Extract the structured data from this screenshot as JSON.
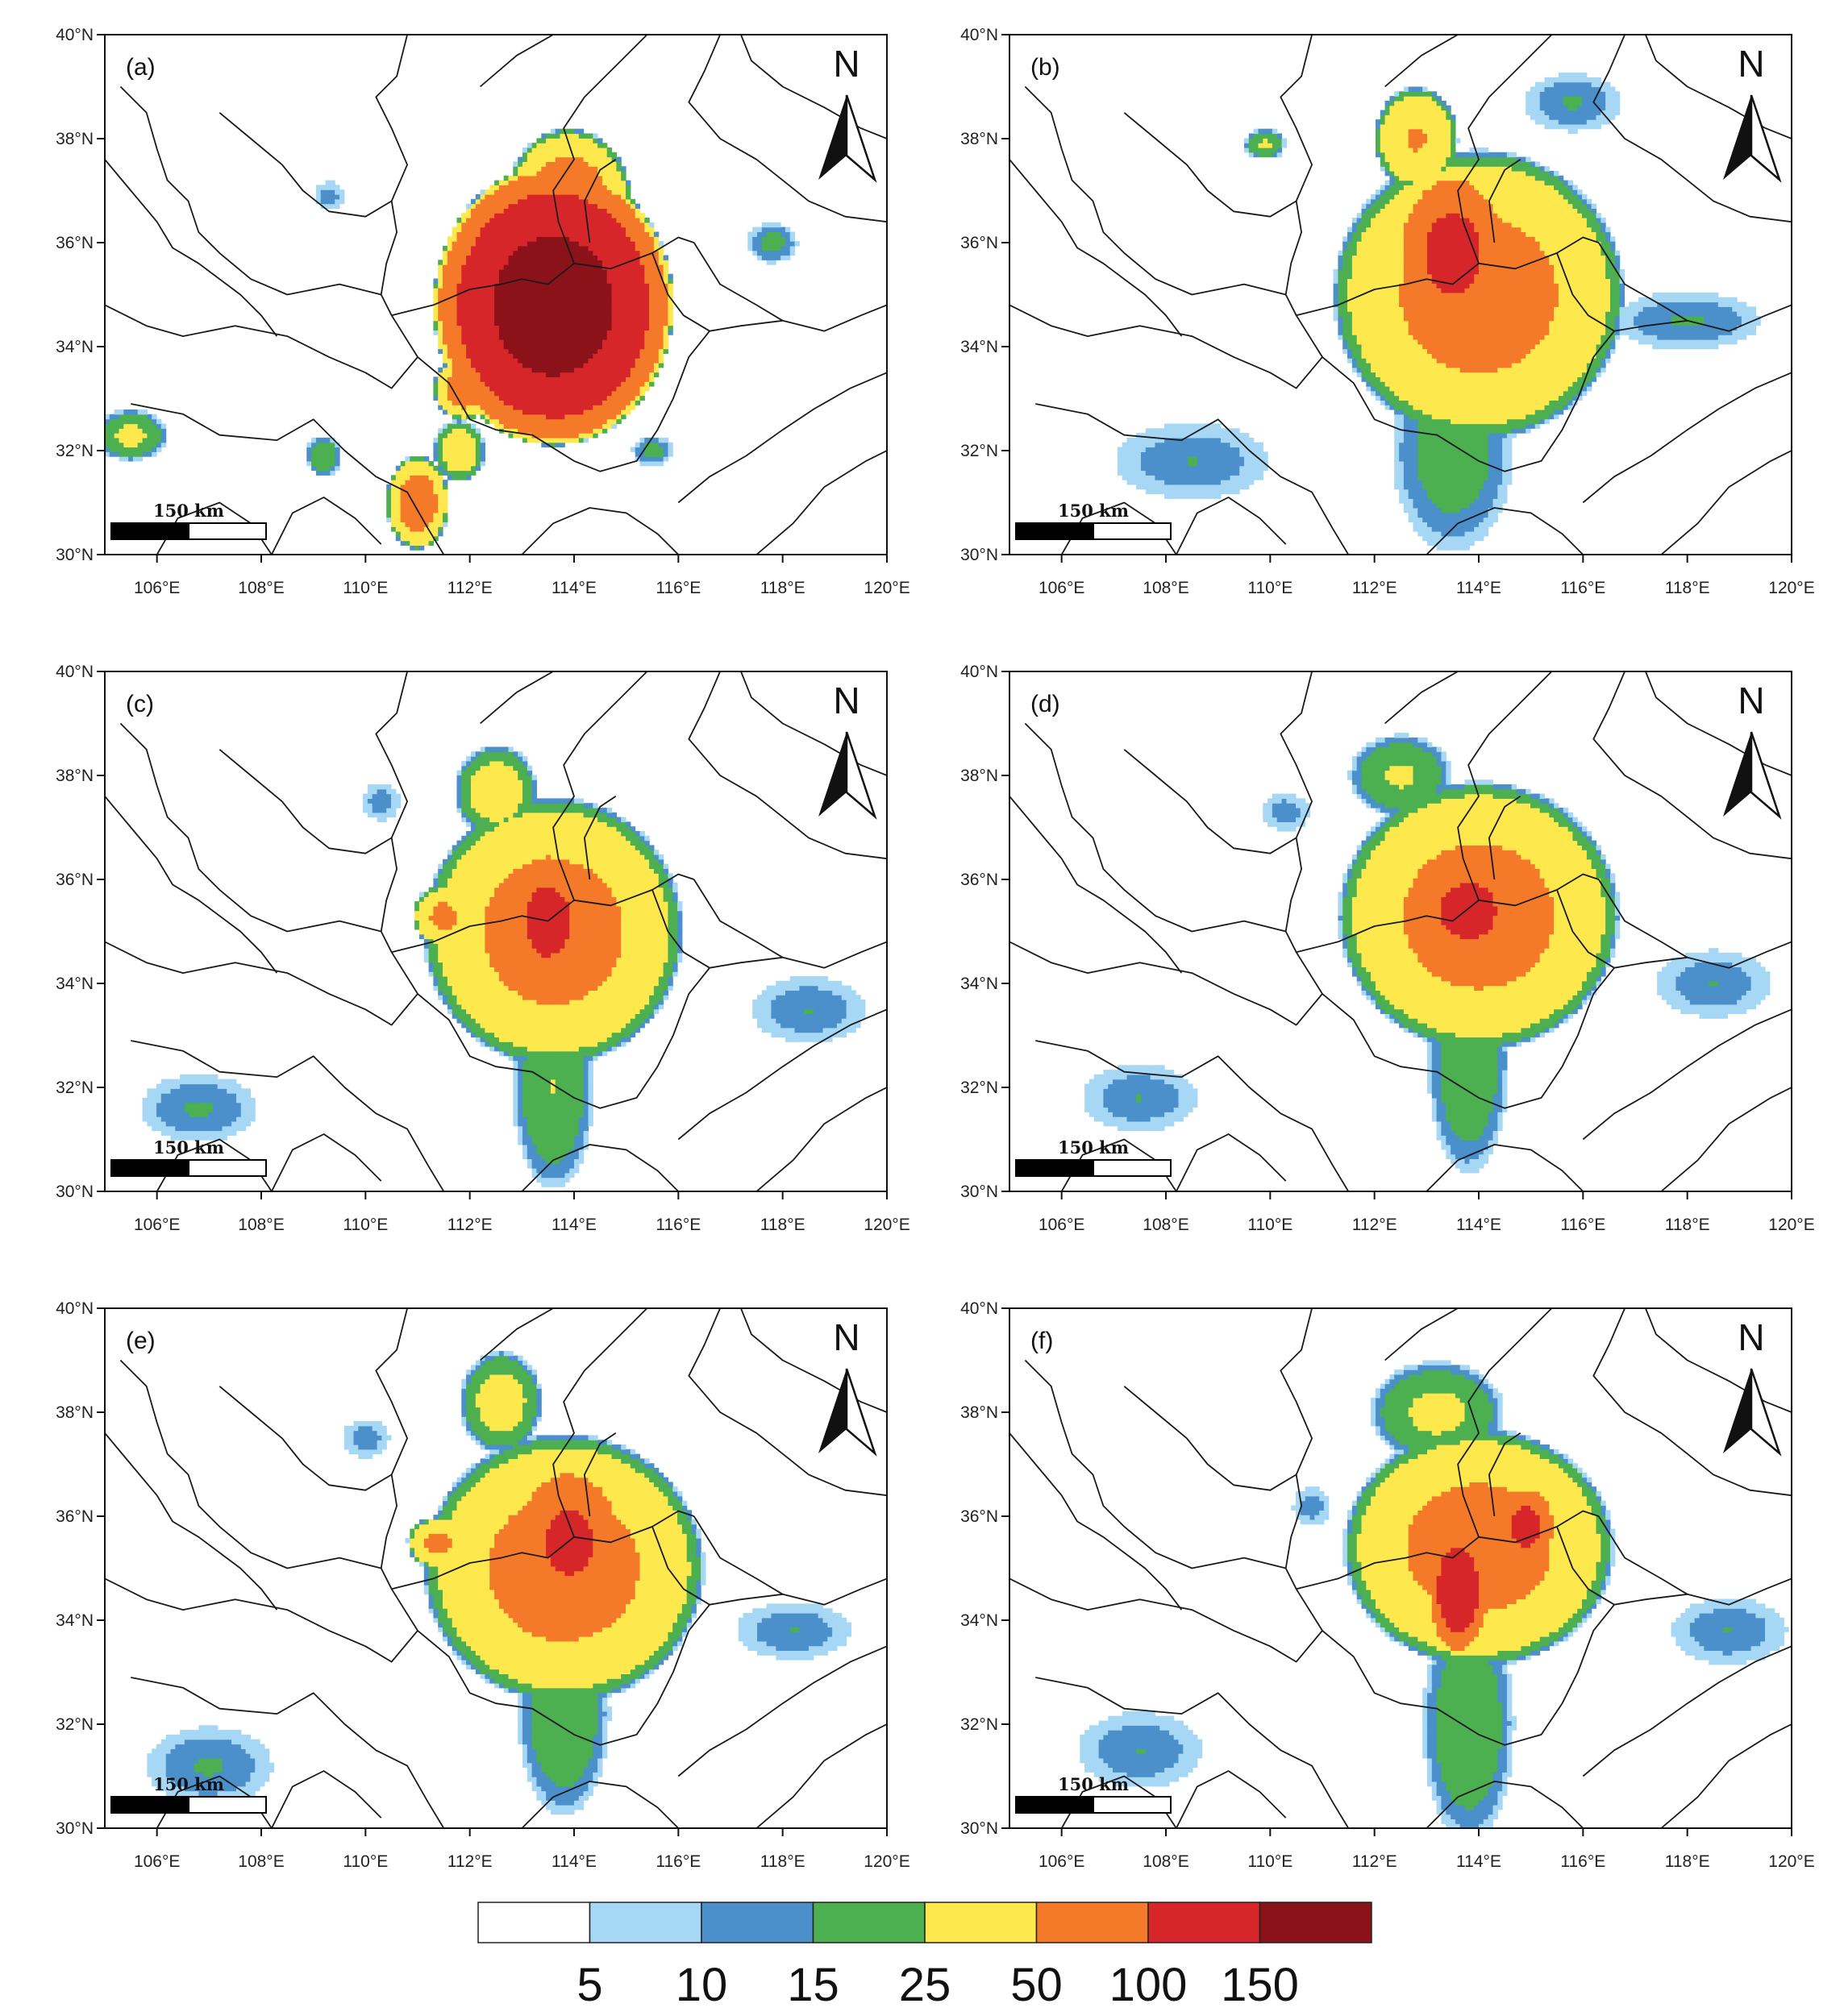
{
  "figure": {
    "panels": [
      {
        "label": "(a)"
      },
      {
        "label": "(b)"
      },
      {
        "label": "(c)"
      },
      {
        "label": "(d)"
      },
      {
        "label": "(e)"
      },
      {
        "label": "(f)"
      }
    ],
    "lat_ticks": [
      "30°N",
      "32°N",
      "34°N",
      "36°N",
      "38°N",
      "40°N"
    ],
    "lon_ticks": [
      "106°E",
      "108°E",
      "110°E",
      "112°E",
      "114°E",
      "116°E",
      "118°E",
      "120°E"
    ],
    "north_label": "N",
    "scale_label": "150 km"
  },
  "chart_data": {
    "type": "heatmap",
    "xlim": [
      105,
      120
    ],
    "ylim": [
      30,
      40
    ],
    "colorbar": {
      "levels": [
        5,
        10,
        15,
        25,
        50,
        100,
        150
      ],
      "tick_labels": [
        "5",
        "10",
        "15",
        "25",
        "50",
        "100",
        "150"
      ],
      "colors": [
        "#ffffff",
        "#a6d8f5",
        "#4b8fcb",
        "#4caf50",
        "#fde84d",
        "#f47a2a",
        "#d7262a",
        "#8b1219"
      ]
    },
    "panels": [
      {
        "label": "(a)",
        "rain_blobs": [
          {
            "lon": 113.6,
            "lat": 34.8,
            "rx": 2.3,
            "ry": 2.7,
            "peak": 170
          },
          {
            "lon": 113.9,
            "lat": 36.8,
            "rx": 1.2,
            "ry": 1.4,
            "peak": 60
          },
          {
            "lon": 111.9,
            "lat": 33.2,
            "rx": 0.6,
            "ry": 0.6,
            "peak": 60
          },
          {
            "lon": 111.0,
            "lat": 31.0,
            "rx": 0.6,
            "ry": 0.9,
            "peak": 60
          },
          {
            "lon": 111.8,
            "lat": 32.0,
            "rx": 0.5,
            "ry": 0.6,
            "peak": 30
          },
          {
            "lon": 105.5,
            "lat": 32.3,
            "rx": 0.7,
            "ry": 0.5,
            "peak": 22
          },
          {
            "lon": 109.2,
            "lat": 31.9,
            "rx": 0.35,
            "ry": 0.4,
            "peak": 18
          },
          {
            "lon": 117.8,
            "lat": 36.0,
            "rx": 0.5,
            "ry": 0.4,
            "peak": 12
          },
          {
            "lon": 109.3,
            "lat": 36.9,
            "rx": 0.3,
            "ry": 0.3,
            "peak": 7
          },
          {
            "lon": 115.5,
            "lat": 32.0,
            "rx": 0.4,
            "ry": 0.3,
            "peak": 12
          }
        ]
      },
      {
        "label": "(b)",
        "rain_blobs": [
          {
            "lon": 114.0,
            "lat": 35.0,
            "rx": 2.8,
            "ry": 2.8,
            "peak": 55
          },
          {
            "lon": 113.5,
            "lat": 35.8,
            "rx": 1.1,
            "ry": 1.6,
            "peak": 110
          },
          {
            "lon": 112.8,
            "lat": 38.0,
            "rx": 0.8,
            "ry": 1.0,
            "peak": 45
          },
          {
            "lon": 113.5,
            "lat": 32.0,
            "rx": 1.2,
            "ry": 2.0,
            "peak": 14
          },
          {
            "lon": 108.5,
            "lat": 31.8,
            "rx": 1.6,
            "ry": 0.8,
            "peak": 8
          },
          {
            "lon": 118.0,
            "lat": 34.5,
            "rx": 1.5,
            "ry": 0.6,
            "peak": 9
          },
          {
            "lon": 109.9,
            "lat": 37.9,
            "rx": 0.4,
            "ry": 0.3,
            "peak": 20
          },
          {
            "lon": 115.8,
            "lat": 38.7,
            "rx": 1.0,
            "ry": 0.6,
            "peak": 9
          }
        ]
      },
      {
        "label": "(c)",
        "rain_blobs": [
          {
            "lon": 113.6,
            "lat": 35.0,
            "rx": 2.5,
            "ry": 2.6,
            "peak": 55
          },
          {
            "lon": 113.5,
            "lat": 35.2,
            "rx": 0.9,
            "ry": 1.4,
            "peak": 110
          },
          {
            "lon": 113.6,
            "lat": 32.0,
            "rx": 0.8,
            "ry": 2.0,
            "peak": 18
          },
          {
            "lon": 112.5,
            "lat": 37.7,
            "rx": 0.8,
            "ry": 0.9,
            "peak": 28
          },
          {
            "lon": 111.5,
            "lat": 35.3,
            "rx": 0.6,
            "ry": 0.6,
            "peak": 50
          },
          {
            "lon": 106.8,
            "lat": 31.6,
            "rx": 1.2,
            "ry": 0.7,
            "peak": 9
          },
          {
            "lon": 118.5,
            "lat": 33.5,
            "rx": 1.2,
            "ry": 0.7,
            "peak": 8
          },
          {
            "lon": 110.3,
            "lat": 37.5,
            "rx": 0.4,
            "ry": 0.4,
            "peak": 7
          }
        ]
      },
      {
        "label": "(d)",
        "rain_blobs": [
          {
            "lon": 114.0,
            "lat": 35.3,
            "rx": 2.7,
            "ry": 2.6,
            "peak": 55
          },
          {
            "lon": 113.8,
            "lat": 35.4,
            "rx": 1.3,
            "ry": 1.3,
            "peak": 105
          },
          {
            "lon": 113.8,
            "lat": 32.5,
            "rx": 0.8,
            "ry": 2.2,
            "peak": 17
          },
          {
            "lon": 112.5,
            "lat": 38.0,
            "rx": 1.0,
            "ry": 0.8,
            "peak": 20
          },
          {
            "lon": 107.5,
            "lat": 31.8,
            "rx": 1.2,
            "ry": 0.7,
            "peak": 8
          },
          {
            "lon": 118.5,
            "lat": 34.0,
            "rx": 1.2,
            "ry": 0.7,
            "peak": 8
          },
          {
            "lon": 110.3,
            "lat": 37.3,
            "rx": 0.5,
            "ry": 0.4,
            "peak": 7
          }
        ]
      },
      {
        "label": "(e)",
        "rain_blobs": [
          {
            "lon": 113.8,
            "lat": 35.0,
            "rx": 2.7,
            "ry": 2.6,
            "peak": 55
          },
          {
            "lon": 113.9,
            "lat": 35.5,
            "rx": 1.1,
            "ry": 1.5,
            "peak": 105
          },
          {
            "lon": 113.8,
            "lat": 32.2,
            "rx": 0.9,
            "ry": 2.0,
            "peak": 17
          },
          {
            "lon": 112.6,
            "lat": 38.2,
            "rx": 0.8,
            "ry": 1.0,
            "peak": 26
          },
          {
            "lon": 111.4,
            "lat": 35.5,
            "rx": 0.6,
            "ry": 0.5,
            "peak": 50
          },
          {
            "lon": 107.0,
            "lat": 31.2,
            "rx": 1.3,
            "ry": 0.8,
            "peak": 9
          },
          {
            "lon": 118.2,
            "lat": 33.8,
            "rx": 1.2,
            "ry": 0.6,
            "peak": 8
          },
          {
            "lon": 110.0,
            "lat": 37.5,
            "rx": 0.5,
            "ry": 0.4,
            "peak": 7
          }
        ]
      },
      {
        "label": "(f)",
        "rain_blobs": [
          {
            "lon": 114.0,
            "lat": 35.4,
            "rx": 2.6,
            "ry": 2.3,
            "peak": 55
          },
          {
            "lon": 113.6,
            "lat": 34.6,
            "rx": 0.6,
            "ry": 1.3,
            "peak": 130
          },
          {
            "lon": 114.9,
            "lat": 35.8,
            "rx": 0.6,
            "ry": 0.8,
            "peak": 110
          },
          {
            "lon": 113.8,
            "lat": 32.0,
            "rx": 0.9,
            "ry": 2.3,
            "peak": 17
          },
          {
            "lon": 113.2,
            "lat": 38.0,
            "rx": 1.3,
            "ry": 1.0,
            "peak": 22
          },
          {
            "lon": 107.5,
            "lat": 31.5,
            "rx": 1.3,
            "ry": 0.8,
            "peak": 8
          },
          {
            "lon": 118.8,
            "lat": 33.8,
            "rx": 1.2,
            "ry": 0.7,
            "peak": 8
          },
          {
            "lon": 110.8,
            "lat": 36.2,
            "rx": 0.4,
            "ry": 0.4,
            "peak": 7
          }
        ]
      }
    ]
  }
}
